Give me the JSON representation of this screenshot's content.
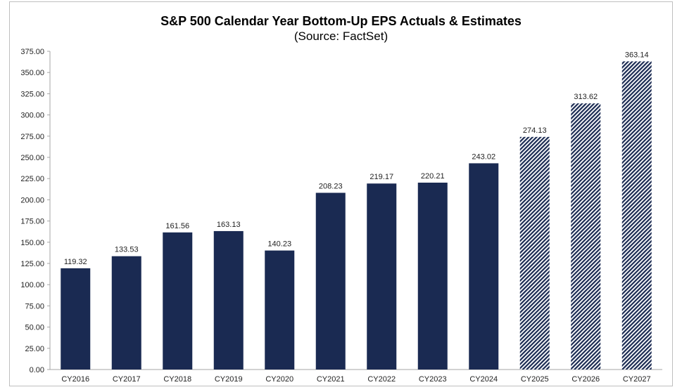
{
  "chart_data": {
    "type": "bar",
    "title": "S&P 500 Calendar Year Bottom-Up EPS Actuals & Estimates",
    "subtitle": "(Source: FactSet)",
    "xlabel": "",
    "ylabel": "",
    "ylim": [
      0,
      375
    ],
    "yticks": [
      "0.00",
      "25.00",
      "50.00",
      "75.00",
      "100.00",
      "125.00",
      "150.00",
      "175.00",
      "200.00",
      "225.00",
      "250.00",
      "275.00",
      "300.00",
      "325.00",
      "350.00",
      "375.00"
    ],
    "grid": false,
    "categories": [
      "CY2016",
      "CY2017",
      "CY2018",
      "CY2019",
      "CY2020",
      "CY2021",
      "CY2022",
      "CY2023",
      "CY2024",
      "CY2025",
      "CY2026",
      "CY2027"
    ],
    "values": [
      119.32,
      133.53,
      161.56,
      163.13,
      140.23,
      208.23,
      219.17,
      220.21,
      243.02,
      274.13,
      313.62,
      363.14
    ],
    "data_labels": [
      "119.32",
      "133.53",
      "161.56",
      "163.13",
      "140.23",
      "208.23",
      "219.17",
      "220.21",
      "243.02",
      "274.13",
      "313.62",
      "363.14"
    ],
    "bar_style": [
      "solid",
      "solid",
      "solid",
      "solid",
      "solid",
      "solid",
      "solid",
      "solid",
      "solid",
      "hatched",
      "hatched",
      "hatched"
    ],
    "colors": {
      "bar": "#1a2a52",
      "hatch_bg": "#ffffff"
    }
  }
}
